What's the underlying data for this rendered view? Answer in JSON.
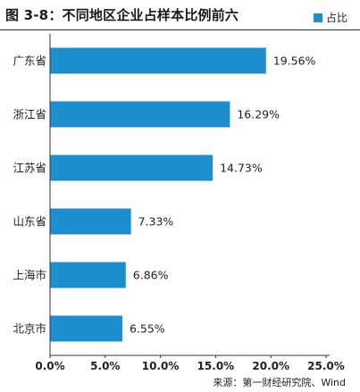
{
  "title": "图 3-8：不同地区企业占样本比例前六",
  "source": "来源：第一财经研究院、Wind",
  "colors": {
    "bar": "#1e8fce",
    "axis": "#333333",
    "text": "#222222"
  },
  "chart_data": {
    "type": "bar",
    "orientation": "horizontal",
    "categories": [
      "广东省",
      "浙江省",
      "江苏省",
      "山东省",
      "上海市",
      "北京市"
    ],
    "series": [
      {
        "name": "占比",
        "values": [
          19.56,
          16.29,
          14.73,
          7.33,
          6.86,
          6.55
        ]
      }
    ],
    "value_labels": [
      "19.56%",
      "16.29%",
      "14.73%",
      "7.33%",
      "6.86%",
      "6.55%"
    ],
    "xlim": [
      0,
      25
    ],
    "x_ticks": [
      "0.0%",
      "5.0%",
      "10.0%",
      "15.0%",
      "20.0%",
      "25.0%"
    ],
    "grid": false,
    "legend_position": "top-right"
  }
}
